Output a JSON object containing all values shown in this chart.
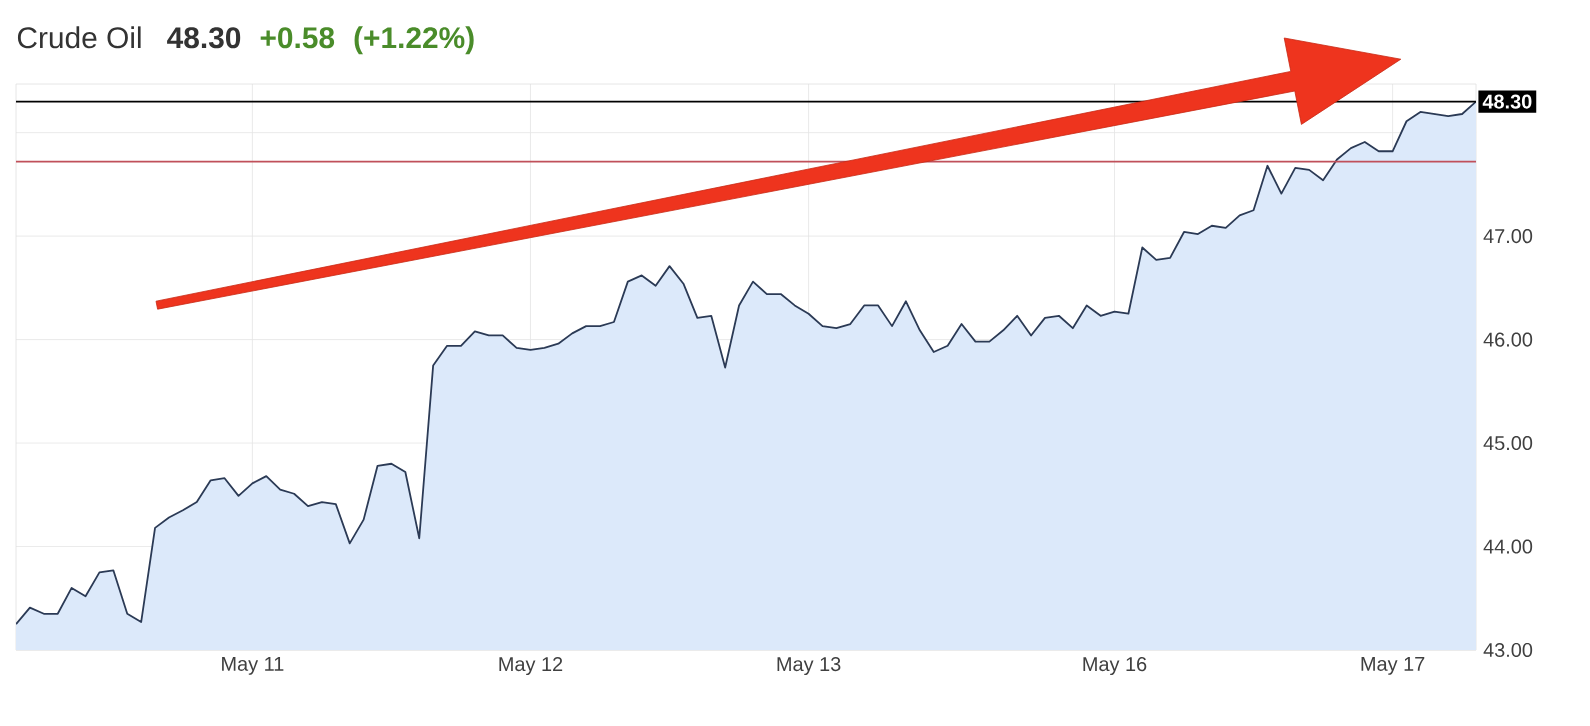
{
  "chart_data": {
    "type": "area",
    "title": "Crude Oil",
    "subtitle": "48.30",
    "annotations": [
      "+0.58",
      "(+1.22%)"
    ],
    "categories": [
      null,
      null,
      null,
      null,
      null,
      null,
      null,
      null,
      null,
      null,
      null,
      null,
      null,
      null,
      null,
      null,
      null,
      "May 11",
      null,
      null,
      null,
      null,
      null,
      null,
      null,
      null,
      null,
      null,
      null,
      null,
      null,
      null,
      null,
      null,
      null,
      null,
      null,
      "May 12",
      null,
      null,
      null,
      null,
      null,
      null,
      null,
      null,
      null,
      null,
      null,
      null,
      null,
      null,
      null,
      null,
      null,
      null,
      null,
      "May 13",
      null,
      null,
      null,
      null,
      null,
      null,
      null,
      null,
      null,
      null,
      null,
      null,
      null,
      null,
      null,
      null,
      null,
      null,
      null,
      null,
      null,
      "May 16",
      null,
      null,
      null,
      null,
      null,
      null,
      null,
      null,
      null,
      null,
      null,
      null,
      null,
      null,
      null,
      null,
      null,
      null,
      null,
      "May 17",
      null,
      null,
      null,
      null,
      null,
      null
    ],
    "series": [
      {
        "color": "#2b3a55",
        "values": [
          43.25,
          43.41,
          43.35,
          43.35,
          43.6,
          43.52,
          43.75,
          43.77,
          43.35,
          43.27,
          44.18,
          44.28,
          44.35,
          44.43,
          44.64,
          44.66,
          44.49,
          44.61,
          44.68,
          44.55,
          44.51,
          44.39,
          44.43,
          44.41,
          44.03,
          44.26,
          44.78,
          44.8,
          44.72,
          44.08,
          45.75,
          45.94,
          45.94,
          46.08,
          46.04,
          46.04,
          45.92,
          45.9,
          45.92,
          45.96,
          46.06,
          46.13,
          46.13,
          46.17,
          46.56,
          46.62,
          46.52,
          46.71,
          46.54,
          46.21,
          46.23,
          45.73,
          46.33,
          46.56,
          46.44,
          46.44,
          46.33,
          46.25,
          46.13,
          46.11,
          46.15,
          46.33,
          46.33,
          46.13,
          46.37,
          46.09,
          45.88,
          45.94,
          46.15,
          45.98,
          45.98,
          46.09,
          46.23,
          46.04,
          46.21,
          46.23,
          46.11,
          46.33,
          46.23,
          46.27,
          46.25,
          46.89,
          46.77,
          46.79,
          47.04,
          47.02,
          47.1,
          47.08,
          47.2,
          47.25,
          47.68,
          47.41,
          47.66,
          47.64,
          47.54,
          47.74,
          47.85,
          47.91,
          47.82,
          47.82,
          48.11,
          48.2,
          48.18,
          48.16,
          48.18,
          48.3
        ]
      }
    ],
    "ylim": [
      43,
      48.47
    ],
    "yticks": [
      {
        "value": 43,
        "label": "43.00"
      },
      {
        "value": 44,
        "label": "44.00"
      },
      {
        "value": 45,
        "label": "45.00"
      },
      {
        "value": 46,
        "label": "46.00"
      },
      {
        "value": 47,
        "label": "47.00"
      },
      {
        "value": 48,
        "label": null
      }
    ],
    "ref_lines": [
      {
        "axis": "y",
        "value": 48.3,
        "label": "48.30",
        "color": "#000000"
      },
      {
        "axis": "y",
        "value": 47.72,
        "color": "#c0505a"
      }
    ],
    "grid": true,
    "marker": "none",
    "line_style": "solid"
  }
}
